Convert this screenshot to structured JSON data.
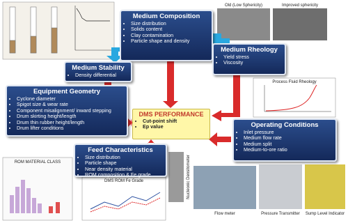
{
  "center": {
    "title": "DMS PERFORMANCE",
    "items": [
      "Cut-point shift",
      "Ep value"
    ]
  },
  "boxes": [
    {
      "title": "Medium Composition",
      "items": [
        "Size distribution",
        "Solids content",
        "Clay contamination",
        "Particle shape and density"
      ]
    },
    {
      "title": "Medium Stability",
      "items": [
        "Density differential"
      ]
    },
    {
      "title": "Medium Rheology",
      "items": [
        "Yield stress",
        "Viscosity"
      ]
    },
    {
      "title": "Equipment Geometry",
      "items": [
        "Cyclone diameter",
        "Spigot size & wear rate",
        "Component misalignment/ inward stepping",
        "Drum skirting height/length",
        "Drum thin rubber height/length",
        "Drum lifter conditions"
      ]
    },
    {
      "title": "Feed Characteristics",
      "items": [
        "Size distribution",
        "Particle shape",
        "Near density material",
        "ROM composition & Fe grade"
      ]
    },
    {
      "title": "Operating Conditions",
      "items": [
        "Inlet pressure",
        "Medium flow rate",
        "Medium split",
        "Medium-to-ore ratio"
      ]
    }
  ],
  "image_labels": {
    "sem_old": "Old (Low Sphericity)",
    "sem_new": "Improved sphericity",
    "rheology": "Process Fluid Rheology",
    "rom_class": "ROM MATERIAL CLASS",
    "fe_grade": "DMS ROM Fe Grade",
    "densitometer": "Nucleonic Densitometer",
    "flow_meter": "Flow meter",
    "pressure": "Pressure Transmitter",
    "sump": "Sump Level Indicator"
  }
}
